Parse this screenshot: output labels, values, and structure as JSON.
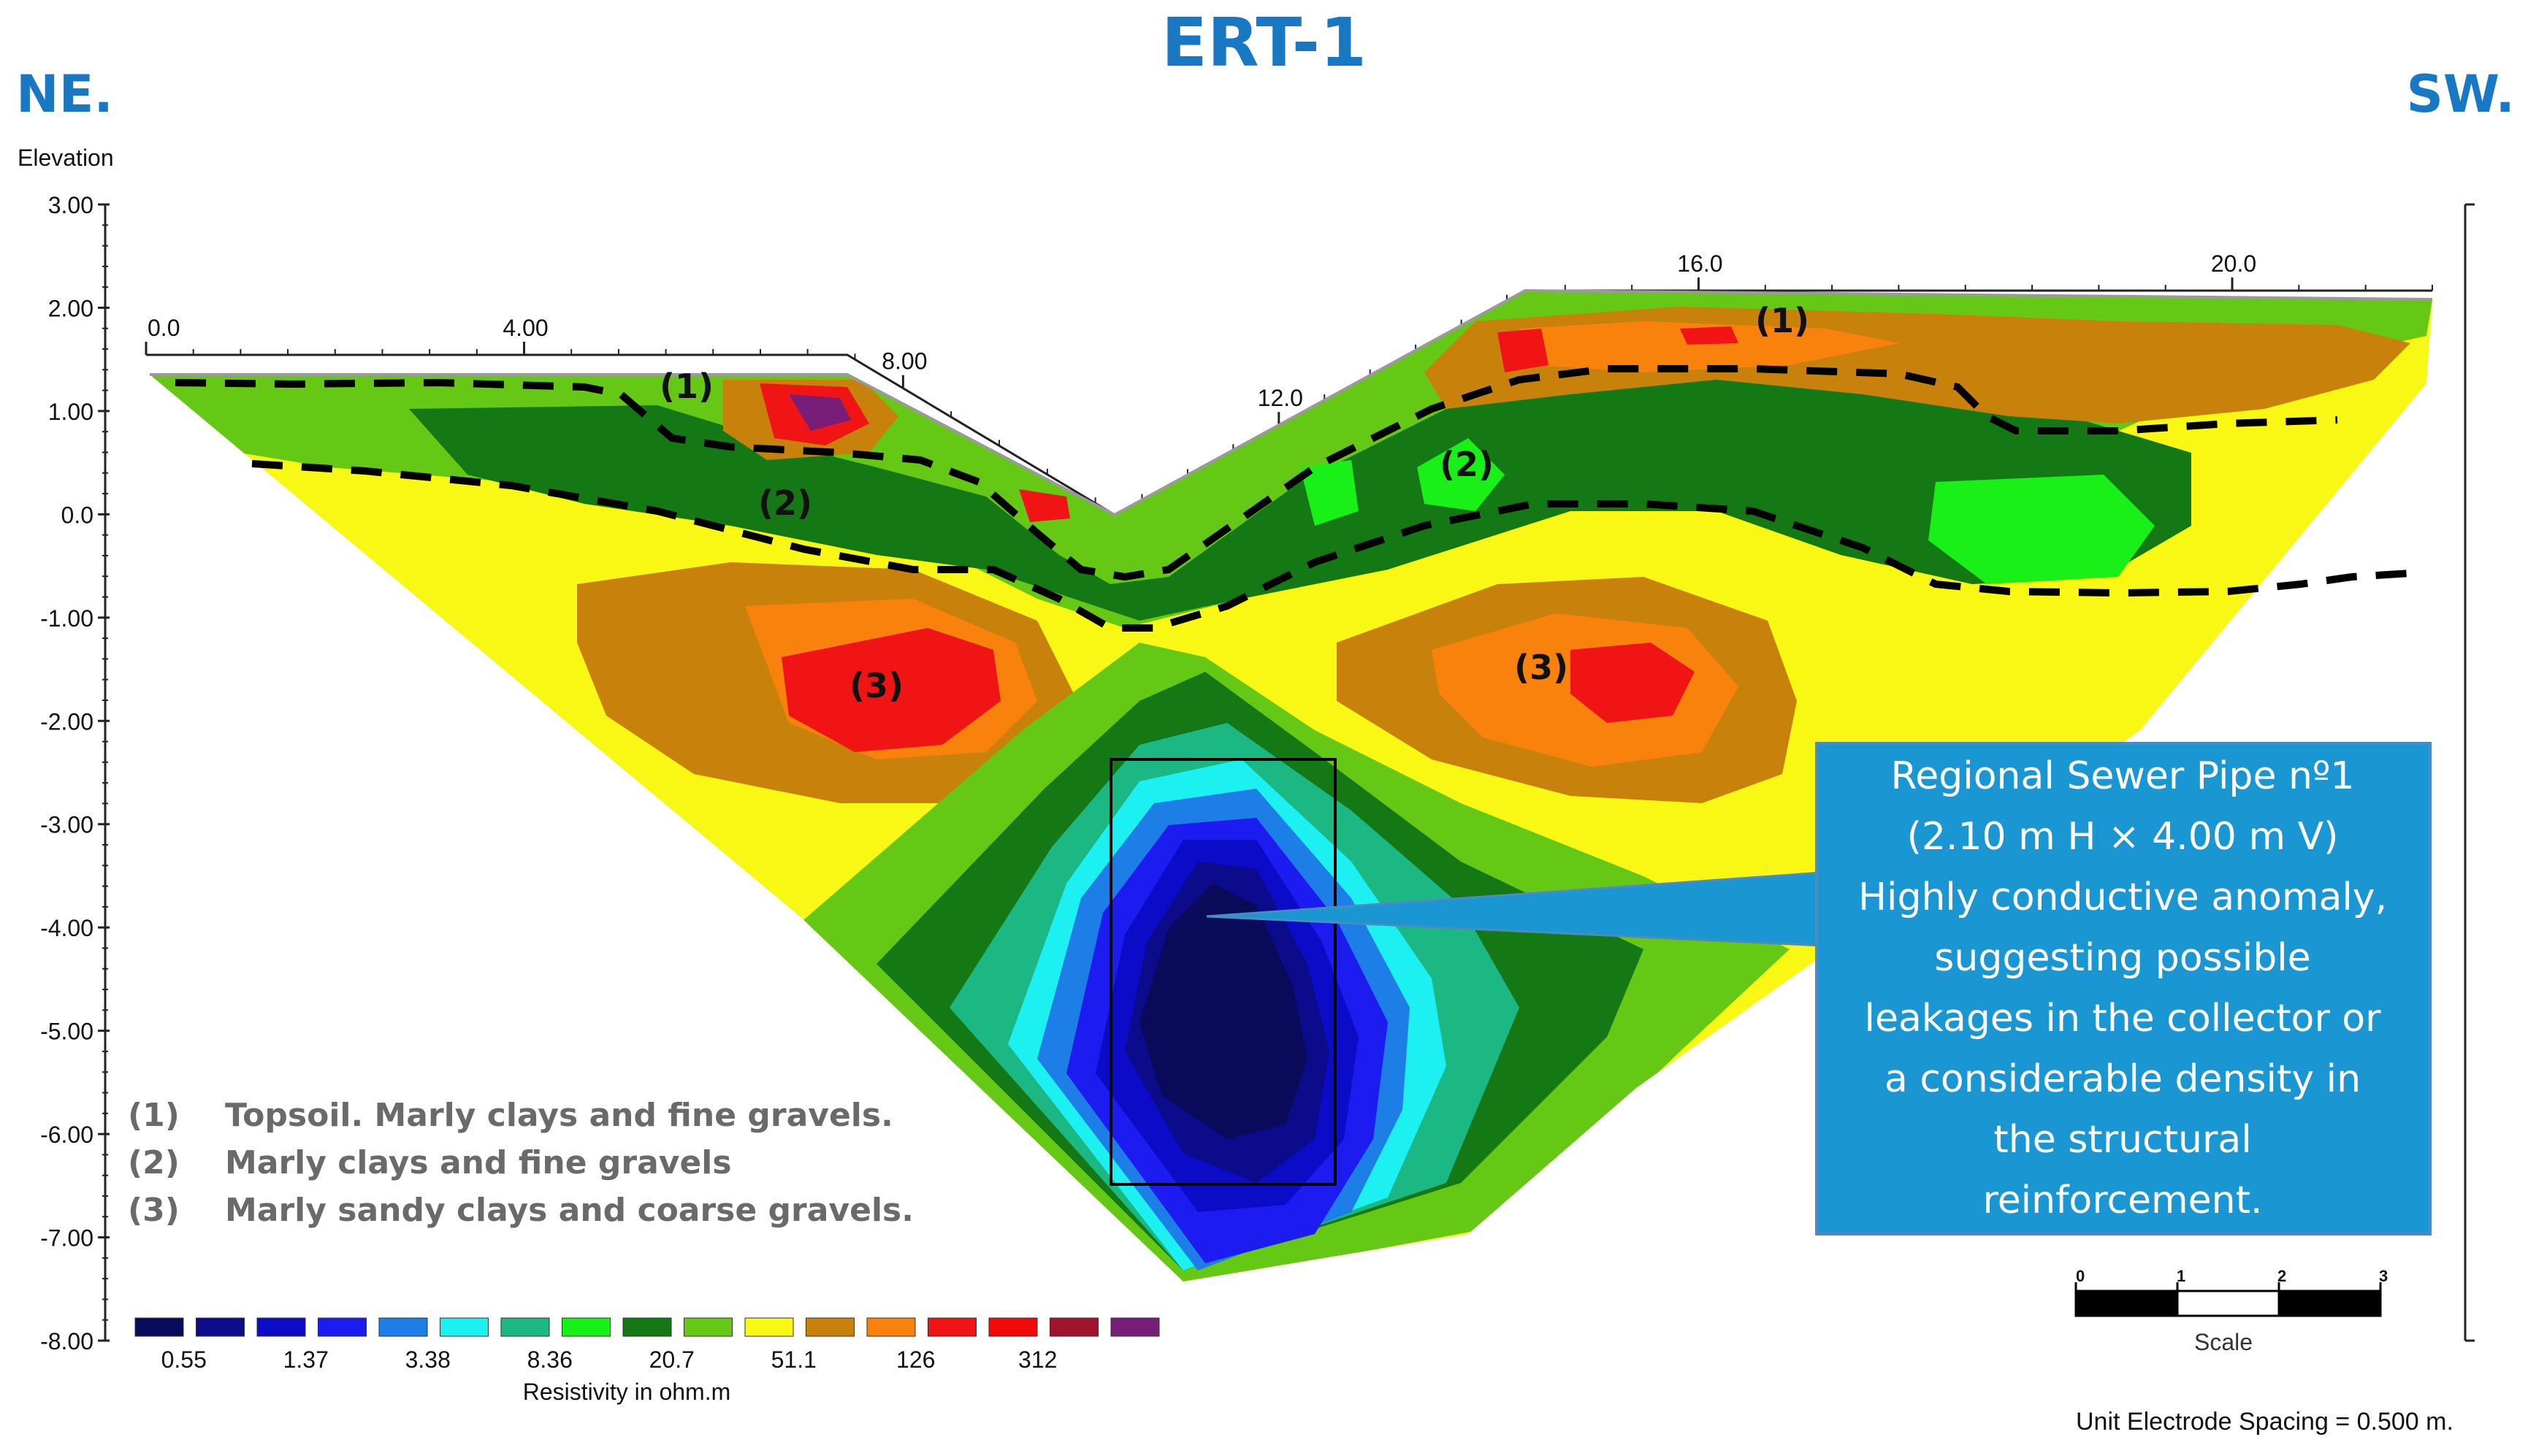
{
  "header": {
    "title": "ERT-1",
    "left_direction": "NE.",
    "right_direction": "SW."
  },
  "chart_data": {
    "type": "heatmap",
    "title": "ERT-1",
    "ylabel": "Elevation",
    "ylim": [
      -8.0,
      3.0
    ],
    "y_ticks": [
      "3.00",
      "2.00",
      "1.00",
      "0.0",
      "-1.00",
      "-2.00",
      "-3.00",
      "-4.00",
      "-5.00",
      "-6.00",
      "-7.00",
      "-8.00"
    ],
    "x_ticks": [
      "0.0",
      "4.00",
      "8.00",
      "12.0",
      "16.0",
      "20.0"
    ],
    "colorbar": {
      "label": "Resistivity in ohm.m",
      "colors": [
        "#0a0a5a",
        "#0b0b8c",
        "#0c0cc8",
        "#1c1cf0",
        "#1e7ee8",
        "#1cf0f0",
        "#1cb884",
        "#18f018",
        "#147814",
        "#64c814",
        "#f8f814",
        "#c8820c",
        "#f8820c",
        "#f01414",
        "#f00a0a",
        "#a0142d",
        "#781e78"
      ],
      "tick_labels": [
        "0.55",
        "1.37",
        "3.38",
        "8.36",
        "20.7",
        "51.1",
        "126",
        "312"
      ]
    },
    "zone_labels": [
      "(1)",
      "(1)",
      "(2)",
      "(2)",
      "(3)",
      "(3)"
    ]
  },
  "unit_legend": [
    {
      "num": "(1)",
      "text": "Topsoil. Marly clays and fine gravels."
    },
    {
      "num": "(2)",
      "text": "Marly clays and fine gravels"
    },
    {
      "num": "(3)",
      "text": "Marly sandy clays and coarse gravels."
    }
  ],
  "callout": {
    "lines": [
      "Regional Sewer Pipe nº1",
      "(2.10 m H × 4.00 m V)",
      "Highly conductive anomaly,",
      "suggesting possible",
      "leakages in the collector or",
      "a considerable density in",
      "the structural",
      "reinforcement."
    ],
    "fill": "#1a96d2"
  },
  "scale_bar": {
    "ticks": [
      "0",
      "1",
      "2",
      "3"
    ],
    "label": "Scale"
  },
  "footer": {
    "spacing": "Unit Electrode Spacing = 0.500 m."
  }
}
